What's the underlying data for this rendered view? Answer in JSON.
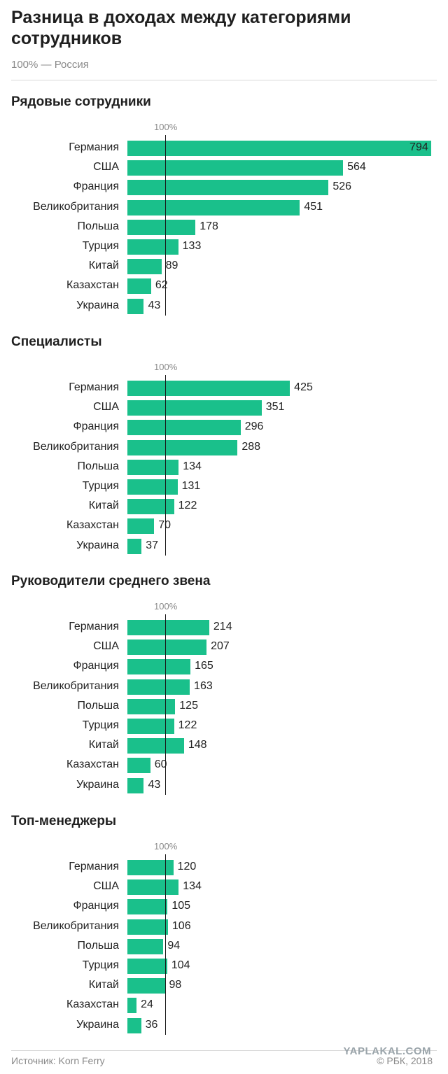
{
  "title": "Разница в доходах между категориями сотрудников",
  "subtitle": "100% — Россия",
  "source": "Источник: Korn Ferry",
  "credit": "© РБК, 2018",
  "watermark": "YAPLAKAL.COM",
  "colors": {
    "bar": "#1ac08b",
    "reference": "#1a1a1a"
  },
  "chart_data": [
    {
      "type": "bar",
      "title": "Рядовые сотрудники",
      "reference_label": "100%",
      "reference_value": 100,
      "categories": [
        "Германия",
        "США",
        "Франция",
        "Великобритания",
        "Польша",
        "Турция",
        "Китай",
        "Казахстан",
        "Украина"
      ],
      "values": [
        794,
        564,
        526,
        451,
        178,
        133,
        89,
        62,
        43
      ]
    },
    {
      "type": "bar",
      "title": "Специалисты",
      "reference_label": "100%",
      "reference_value": 100,
      "categories": [
        "Германия",
        "США",
        "Франция",
        "Великобритания",
        "Польша",
        "Турция",
        "Китай",
        "Казахстан",
        "Украина"
      ],
      "values": [
        425,
        351,
        296,
        288,
        134,
        131,
        122,
        70,
        37
      ]
    },
    {
      "type": "bar",
      "title": "Руководители среднего звена",
      "reference_label": "100%",
      "reference_value": 100,
      "categories": [
        "Германия",
        "США",
        "Франция",
        "Великобритания",
        "Польша",
        "Турция",
        "Китай",
        "Казахстан",
        "Украина"
      ],
      "values": [
        214,
        207,
        165,
        163,
        125,
        122,
        148,
        60,
        43
      ]
    },
    {
      "type": "bar",
      "title": "Топ-менеджеры",
      "reference_label": "100%",
      "reference_value": 100,
      "categories": [
        "Германия",
        "США",
        "Франция",
        "Великобритания",
        "Польша",
        "Турция",
        "Китай",
        "Казахстан",
        "Украина"
      ],
      "values": [
        120,
        134,
        105,
        106,
        94,
        104,
        98,
        24,
        36
      ]
    }
  ]
}
